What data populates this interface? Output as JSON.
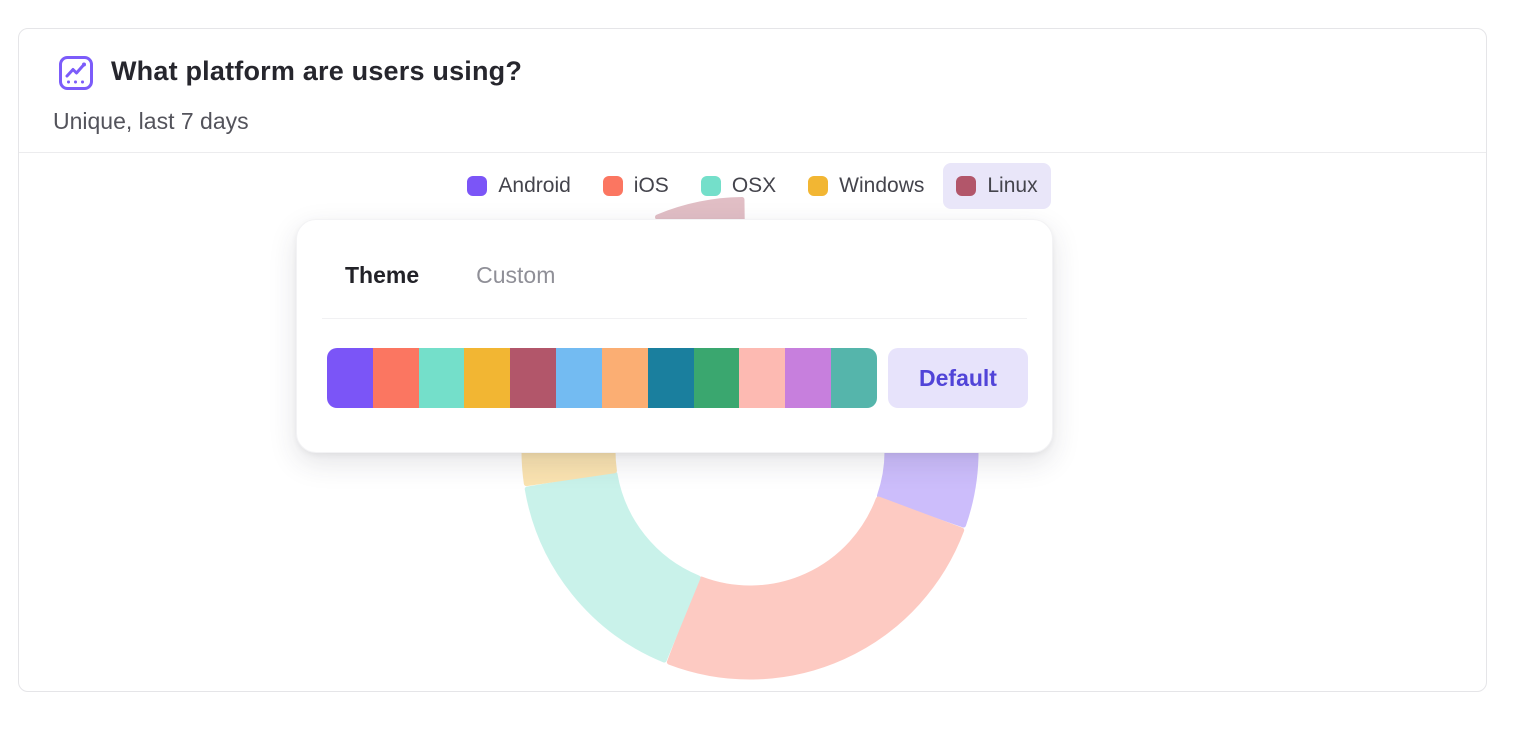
{
  "card": {
    "title": "What platform are users using?",
    "subtitle": "Unique, last 7 days",
    "icon_color": "#7c5cfa"
  },
  "legend": {
    "highlight_bg": "#e9e6f9",
    "items": [
      {
        "label": "Android",
        "color": "#7b55f7",
        "active": false
      },
      {
        "label": "iOS",
        "color": "#fb7661",
        "active": false
      },
      {
        "label": "OSX",
        "color": "#74dfca",
        "active": false
      },
      {
        "label": "Windows",
        "color": "#f2b633",
        "active": false
      },
      {
        "label": "Linux",
        "color": "#b2566a",
        "active": true
      }
    ]
  },
  "popover": {
    "tabs": [
      {
        "label": "Theme",
        "active": true
      },
      {
        "label": "Custom",
        "active": false
      }
    ],
    "palette": [
      "#7b55f7",
      "#fb7661",
      "#74dfca",
      "#f2b633",
      "#b2566a",
      "#73bbf2",
      "#fbae73",
      "#1a7f9e",
      "#3aa76f",
      "#fdbab2",
      "#c77fdd",
      "#55b5ab"
    ],
    "default_button": {
      "label": "Default",
      "text_color": "#5144d8",
      "bg": "#e7e3fb"
    }
  },
  "chart_data": {
    "type": "pie",
    "donut": true,
    "title": "What platform are users using?",
    "subtitle": "Unique, last 7 days",
    "legend_position": "top",
    "start_angle_deg": 0,
    "direction": "clockwise",
    "categories": [
      "Android",
      "iOS",
      "OSX",
      "Windows",
      "Linux"
    ],
    "values": [
      30.5,
      25.5,
      16.5,
      21.0,
      6.5
    ],
    "colors": [
      "#7b55f7",
      "#fb7661",
      "#74dfca",
      "#f2b633",
      "#b2566a"
    ],
    "exploded_slice": "Linux",
    "faded": true,
    "fade_opacity": 0.38
  }
}
